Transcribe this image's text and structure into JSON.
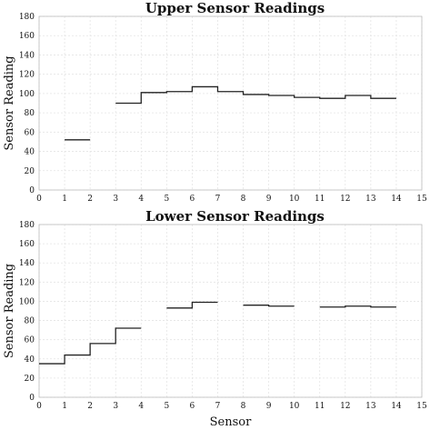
{
  "chart_data": [
    {
      "type": "line",
      "step": "post",
      "title": "Upper Sensor Readings",
      "xlabel": "",
      "ylabel": "Sensor Reading",
      "xlim": [
        0,
        15
      ],
      "ylim": [
        0,
        180
      ],
      "xticks": [
        0,
        1,
        2,
        3,
        4,
        5,
        6,
        7,
        8,
        9,
        10,
        11,
        12,
        13,
        14,
        15
      ],
      "yticks": [
        0,
        20,
        40,
        60,
        80,
        100,
        120,
        140,
        160,
        180
      ],
      "grid": true,
      "series": [
        {
          "x": [
            1,
            2,
            3,
            4,
            5,
            6,
            7,
            8,
            9,
            10,
            11,
            12,
            13,
            14
          ],
          "y": [
            52,
            null,
            90,
            101,
            102,
            107,
            102,
            99,
            98,
            96,
            95,
            98,
            95,
            null
          ]
        }
      ]
    },
    {
      "type": "line",
      "step": "post",
      "title": "Lower Sensor Readings",
      "xlabel": "Sensor",
      "ylabel": "Sensor Reading",
      "xlim": [
        0,
        15
      ],
      "ylim": [
        0,
        180
      ],
      "xticks": [
        0,
        1,
        2,
        3,
        4,
        5,
        6,
        7,
        8,
        9,
        10,
        11,
        12,
        13,
        14,
        15
      ],
      "yticks": [
        0,
        20,
        40,
        60,
        80,
        100,
        120,
        140,
        160,
        180
      ],
      "grid": true,
      "series": [
        {
          "x": [
            0,
            1,
            2,
            3,
            4,
            5,
            6,
            7,
            8,
            9,
            10,
            11,
            12,
            13,
            14
          ],
          "y": [
            35,
            44,
            56,
            72,
            null,
            93,
            99,
            null,
            96,
            95,
            null,
            94,
            95,
            94,
            null
          ]
        }
      ]
    }
  ]
}
